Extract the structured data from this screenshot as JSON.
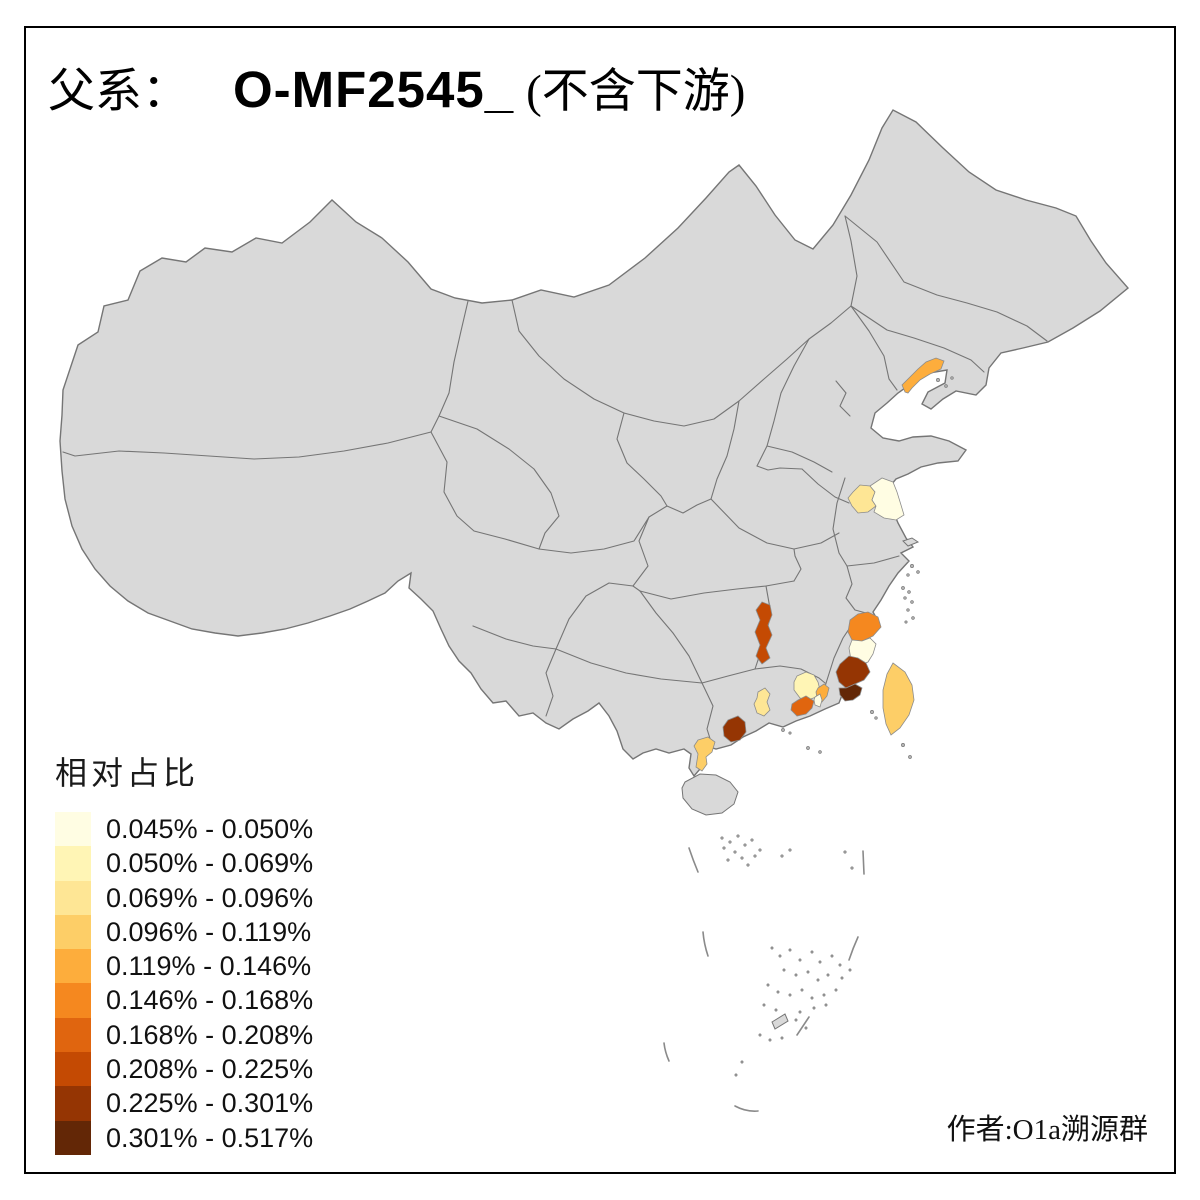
{
  "title": {
    "prefix": "父系：",
    "haplogroup": "O-MF2545_",
    "suffix": "(不含下游)"
  },
  "legend": {
    "title": "相对占比",
    "classes": [
      {
        "label": "0.045% - 0.050%",
        "color": "#FFFDE3"
      },
      {
        "label": "0.050% - 0.069%",
        "color": "#FFF5B5"
      },
      {
        "label": "0.069% - 0.096%",
        "color": "#FEE695"
      },
      {
        "label": "0.096% - 0.119%",
        "color": "#FDCE67"
      },
      {
        "label": "0.119% - 0.146%",
        "color": "#FDAD3C"
      },
      {
        "label": "0.146% - 0.168%",
        "color": "#F5881F"
      },
      {
        "label": "0.168% - 0.208%",
        "color": "#E0650F"
      },
      {
        "label": "0.208% - 0.225%",
        "color": "#C44A03"
      },
      {
        "label": "0.225% - 0.301%",
        "color": "#953503"
      },
      {
        "label": "0.301% - 0.517%",
        "color": "#632706"
      }
    ]
  },
  "map": {
    "land_color": "#D9D9D9",
    "border_color": "#757575",
    "sea_color": "#FFFFFF",
    "regions": [
      {
        "id": "south-liaoning",
        "class": 5
      },
      {
        "id": "central-north-jiangsu",
        "class": 3
      },
      {
        "id": "coastal-jiangsu",
        "class": 1
      },
      {
        "id": "west-jiangxi",
        "class": 8
      },
      {
        "id": "northeast-fujian",
        "class": 6
      },
      {
        "id": "east-fujian-fuzhou",
        "class": 1
      },
      {
        "id": "southeast-fujian-quanzhou",
        "class": 9
      },
      {
        "id": "south-fujian-xiamen-zhangzhou",
        "class": 10
      },
      {
        "id": "northeast-guangdong-meizhou",
        "class": 2
      },
      {
        "id": "chaozhou",
        "class": 5
      },
      {
        "id": "shantou",
        "class": 1
      },
      {
        "id": "jieyang-coast",
        "class": 7
      },
      {
        "id": "central-guangdong",
        "class": 3
      },
      {
        "id": "southwest-guangdong",
        "class": 9
      },
      {
        "id": "leizhou-peninsula",
        "class": 4
      },
      {
        "id": "taiwan",
        "class": 4
      }
    ]
  },
  "credit": "作者:O1a溯源群",
  "chart_data": {
    "type": "heatmap",
    "subtype": "choropleth-map-of-china",
    "title": "父系： O-MF2545_ (不含下游)",
    "legend_title": "相对占比",
    "legend_position": "bottom-left",
    "no_data_fill": "#D9D9D9",
    "class_breaks": [
      "0.045% - 0.050%",
      "0.050% - 0.069%",
      "0.069% - 0.096%",
      "0.096% - 0.119%",
      "0.119% - 0.146%",
      "0.146% - 0.168%",
      "0.168% - 0.208%",
      "0.208% - 0.225%",
      "0.225% - 0.301%",
      "0.301% - 0.517%"
    ],
    "palette": [
      "#FFFDE3",
      "#FFF5B5",
      "#FEE695",
      "#FDCE67",
      "#FDAD3C",
      "#F5881F",
      "#E0650F",
      "#C44A03",
      "#953503",
      "#632706"
    ],
    "shaded_regions": [
      {
        "region": "south-liaoning",
        "range": "0.119% - 0.146%"
      },
      {
        "region": "central-north-jiangsu",
        "range": "0.069% - 0.096%"
      },
      {
        "region": "coastal-jiangsu",
        "range": "0.045% - 0.050%"
      },
      {
        "region": "west-jiangxi",
        "range": "0.208% - 0.225%"
      },
      {
        "region": "northeast-fujian",
        "range": "0.146% - 0.168%"
      },
      {
        "region": "east-fujian-fuzhou",
        "range": "0.045% - 0.050%"
      },
      {
        "region": "southeast-fujian-quanzhou",
        "range": "0.225% - 0.301%"
      },
      {
        "region": "south-fujian-xiamen-zhangzhou",
        "range": "0.301% - 0.517%"
      },
      {
        "region": "northeast-guangdong-meizhou",
        "range": "0.050% - 0.069%"
      },
      {
        "region": "chaozhou",
        "range": "0.119% - 0.146%"
      },
      {
        "region": "shantou",
        "range": "0.045% - 0.050%"
      },
      {
        "region": "jieyang-coast",
        "range": "0.168% - 0.208%"
      },
      {
        "region": "central-guangdong",
        "range": "0.069% - 0.096%"
      },
      {
        "region": "southwest-guangdong",
        "range": "0.225% - 0.301%"
      },
      {
        "region": "leizhou-peninsula",
        "range": "0.096% - 0.119%"
      },
      {
        "region": "taiwan",
        "range": "0.096% - 0.119%"
      }
    ],
    "credit": "作者:O1a溯源群"
  }
}
